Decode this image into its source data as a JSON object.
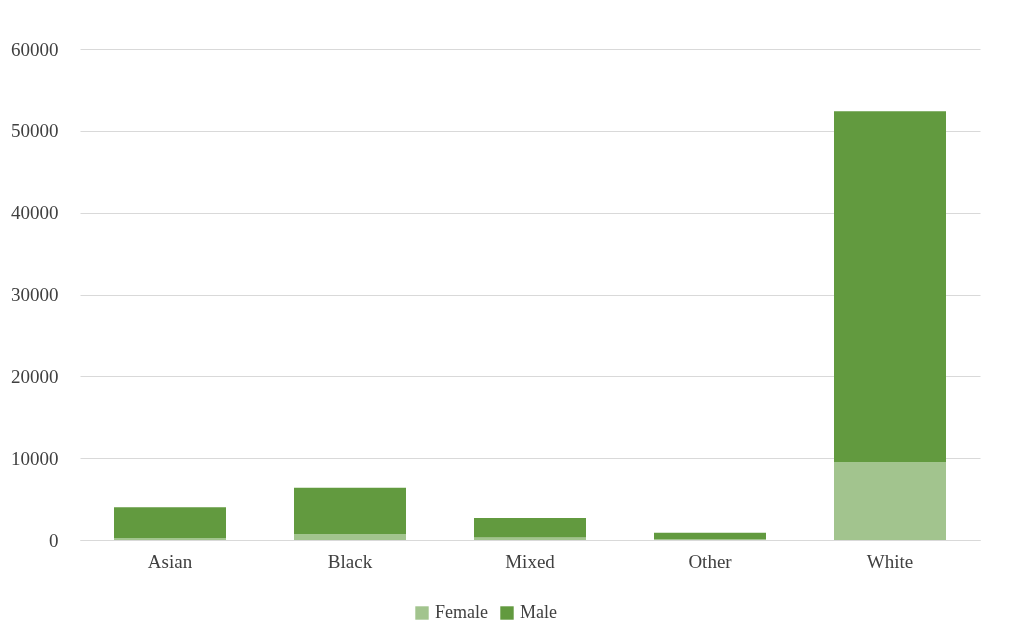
{
  "chart_data": {
    "type": "bar",
    "stacked": true,
    "categories": [
      "Asian",
      "Black",
      "Mixed",
      "Other",
      "White"
    ],
    "series": [
      {
        "name": "Female",
        "color": "#a2c48e",
        "values": [
          200,
          700,
          300,
          100,
          9500
        ]
      },
      {
        "name": "Male",
        "color": "#629a3f",
        "values": [
          3800,
          5700,
          2400,
          800,
          42900
        ]
      }
    ],
    "ylim": [
      0,
      60000
    ],
    "yticks": [
      0,
      10000,
      20000,
      30000,
      40000,
      50000,
      60000
    ],
    "grid": "y",
    "legend": "bottom"
  }
}
